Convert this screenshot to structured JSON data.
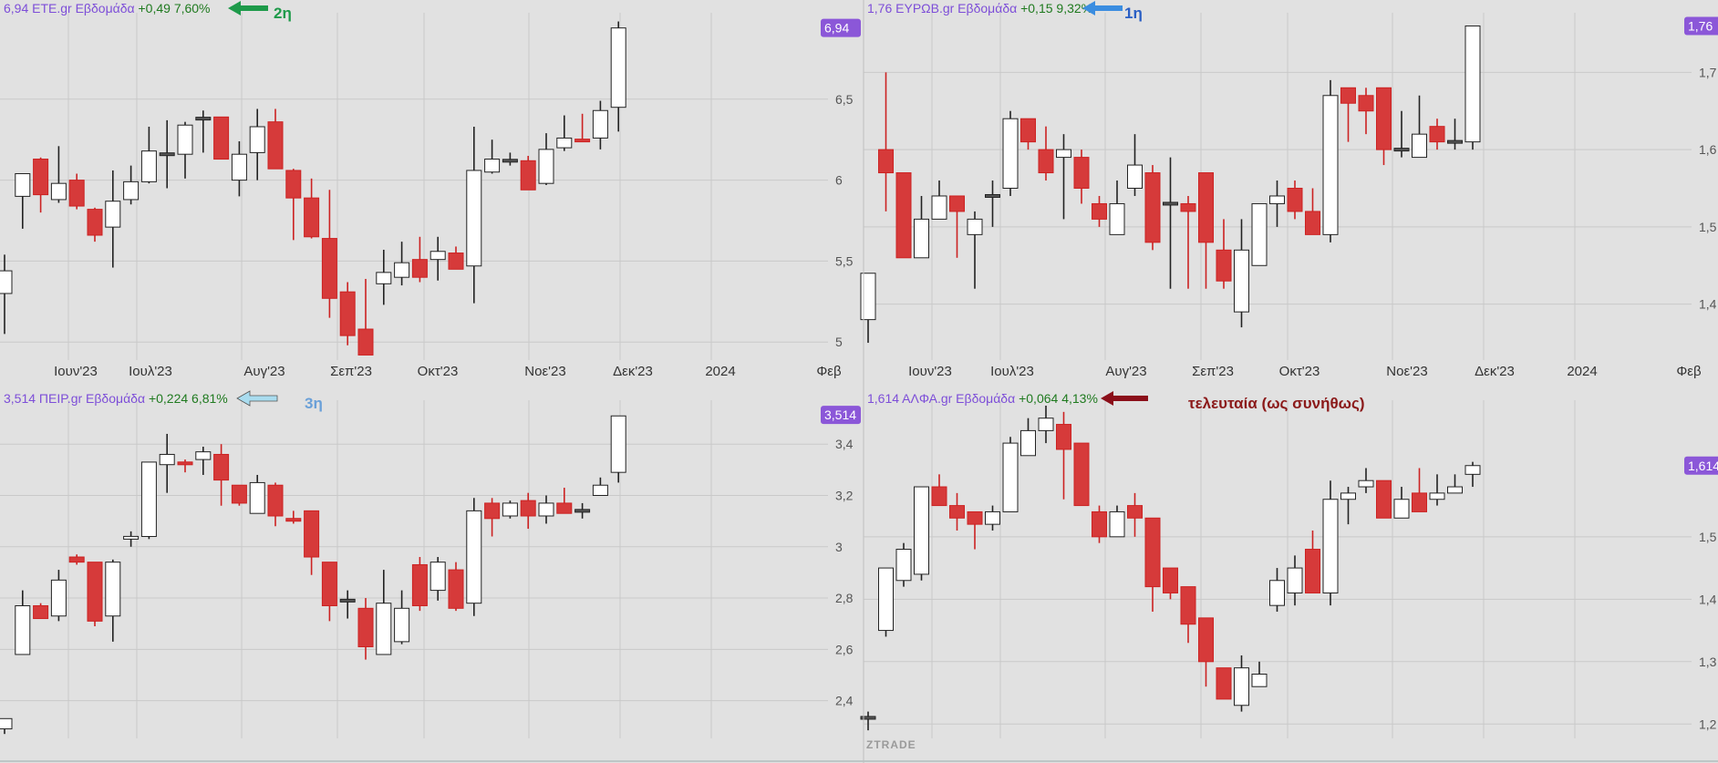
{
  "watermark": "ZTRADE",
  "colors": {
    "background": "#e1e1e1",
    "grid": "#c9c9c9",
    "up_fill": "#ffffff",
    "down_fill": "#d63a3a",
    "neutral_fill": "#555555",
    "header_name": "#7d4ed8",
    "header_change": "#1f7a1f",
    "price_badge": "#8b57d8"
  },
  "x_axis_labels": [
    "Ιουν'23",
    "Ιουλ'23",
    "Αυγ'23",
    "Σεπ'23",
    "Οκτ'23",
    "Νοε'23",
    "Δεκ'23",
    "2024",
    "Φεβ"
  ],
  "chart_data": [
    {
      "type": "candlestick",
      "symbol": "ETE.gr",
      "interval": "Εβδομάδα",
      "last": "6,94",
      "change": "+0,49",
      "change_pct": "7,60%",
      "annotation": {
        "text": "2η",
        "arrow": "green",
        "color": "#1e9a4a"
      },
      "ylim": [
        4.9,
        7.0
      ],
      "y_ticks": [
        "5",
        "5,5",
        "6",
        "6,5"
      ],
      "y_tick_values": [
        5,
        5.5,
        6,
        6.5
      ],
      "x_labels": [
        "Ιουν'23",
        "Ιουλ'23",
        "Αυγ'23",
        "Σεπ'23",
        "Οκτ'23",
        "Νοε'23",
        "Δεκ'23",
        "2024",
        "Φεβ"
      ],
      "grid": true,
      "candles": [
        [
          5.3,
          5.44,
          5.05,
          5.54
        ],
        [
          5.9,
          6.04,
          5.7,
          6.03
        ],
        [
          6.13,
          5.91,
          5.8,
          6.14
        ],
        [
          5.88,
          5.98,
          5.86,
          6.21
        ],
        [
          6.0,
          5.84,
          5.82,
          6.04
        ],
        [
          5.82,
          5.66,
          5.62,
          5.83
        ],
        [
          5.71,
          5.87,
          5.46,
          6.06
        ],
        [
          5.88,
          5.99,
          5.85,
          6.09
        ],
        [
          5.99,
          6.18,
          5.98,
          6.33
        ],
        [
          6.16,
          6.16,
          5.95,
          6.37
        ],
        [
          6.16,
          6.34,
          6.01,
          6.36
        ],
        [
          6.38,
          6.38,
          6.17,
          6.43
        ],
        [
          6.39,
          6.13,
          6.13,
          6.39
        ],
        [
          6.0,
          6.16,
          5.9,
          6.24
        ],
        [
          6.17,
          6.33,
          6.0,
          6.44
        ],
        [
          6.36,
          6.07,
          6.07,
          6.44
        ],
        [
          6.06,
          5.89,
          5.63,
          6.07
        ],
        [
          5.89,
          5.65,
          5.64,
          6.01
        ],
        [
          5.64,
          5.27,
          5.15,
          5.94
        ],
        [
          5.31,
          5.04,
          4.98,
          5.37
        ],
        [
          5.08,
          4.92,
          4.92,
          5.39
        ],
        [
          5.36,
          5.43,
          5.23,
          5.57
        ],
        [
          5.4,
          5.49,
          5.35,
          5.62
        ],
        [
          5.51,
          5.4,
          5.37,
          5.65
        ],
        [
          5.51,
          5.56,
          5.38,
          5.65
        ],
        [
          5.55,
          5.45,
          5.45,
          5.59
        ],
        [
          5.47,
          6.06,
          5.24,
          6.33
        ],
        [
          6.05,
          6.13,
          6.04,
          6.25
        ],
        [
          6.12,
          6.12,
          6.09,
          6.17
        ],
        [
          6.12,
          5.94,
          5.94,
          6.15
        ],
        [
          5.98,
          6.19,
          5.97,
          6.29
        ],
        [
          6.2,
          6.26,
          6.18,
          6.4
        ],
        [
          6.25,
          6.24,
          6.24,
          6.41
        ],
        [
          6.26,
          6.43,
          6.19,
          6.49
        ],
        [
          6.45,
          6.94,
          6.3,
          6.98
        ]
      ]
    },
    {
      "type": "candlestick",
      "symbol": "ΕΥΡΩΒ.gr",
      "interval": "Εβδομάδα",
      "last": "1,76",
      "change": "+0,15",
      "change_pct": "9,32%",
      "annotation": {
        "text": "1η",
        "arrow": "blue",
        "color": "#2a5fc4"
      },
      "ylim": [
        1.33,
        1.77
      ],
      "y_ticks": [
        "1,4",
        "1,5",
        "1,6",
        "1,7"
      ],
      "y_tick_values": [
        1.4,
        1.5,
        1.6,
        1.7
      ],
      "x_labels": [
        "Ιουν'23",
        "Ιουλ'23",
        "Αυγ'23",
        "Σεπ'23",
        "Οκτ'23",
        "Νοε'23",
        "Δεκ'23",
        "2024",
        "Φεβ"
      ],
      "grid": true,
      "candles": [
        [
          1.38,
          1.44,
          1.35,
          1.44
        ],
        [
          1.6,
          1.57,
          1.52,
          1.7
        ],
        [
          1.57,
          1.46,
          1.46,
          1.57
        ],
        [
          1.46,
          1.51,
          1.46,
          1.54
        ],
        [
          1.51,
          1.54,
          1.51,
          1.56
        ],
        [
          1.54,
          1.52,
          1.46,
          1.54
        ],
        [
          1.49,
          1.51,
          1.42,
          1.52
        ],
        [
          1.54,
          1.54,
          1.5,
          1.56
        ],
        [
          1.55,
          1.64,
          1.54,
          1.65
        ],
        [
          1.64,
          1.61,
          1.6,
          1.64
        ],
        [
          1.6,
          1.57,
          1.56,
          1.63
        ],
        [
          1.59,
          1.6,
          1.51,
          1.62
        ],
        [
          1.59,
          1.55,
          1.53,
          1.6
        ],
        [
          1.53,
          1.51,
          1.5,
          1.54
        ],
        [
          1.49,
          1.53,
          1.49,
          1.56
        ],
        [
          1.55,
          1.58,
          1.54,
          1.62
        ],
        [
          1.57,
          1.48,
          1.47,
          1.58
        ],
        [
          1.53,
          1.53,
          1.42,
          1.59
        ],
        [
          1.53,
          1.52,
          1.42,
          1.54
        ],
        [
          1.57,
          1.48,
          1.42,
          1.57
        ],
        [
          1.47,
          1.43,
          1.42,
          1.51
        ],
        [
          1.39,
          1.47,
          1.37,
          1.51
        ],
        [
          1.45,
          1.53,
          1.45,
          1.53
        ],
        [
          1.53,
          1.54,
          1.5,
          1.56
        ],
        [
          1.55,
          1.52,
          1.51,
          1.56
        ],
        [
          1.52,
          1.49,
          1.49,
          1.55
        ],
        [
          1.49,
          1.67,
          1.48,
          1.69
        ],
        [
          1.68,
          1.66,
          1.61,
          1.68
        ],
        [
          1.67,
          1.65,
          1.62,
          1.68
        ],
        [
          1.68,
          1.6,
          1.58,
          1.68
        ],
        [
          1.6,
          1.6,
          1.59,
          1.65
        ],
        [
          1.59,
          1.62,
          1.59,
          1.67
        ],
        [
          1.63,
          1.61,
          1.6,
          1.64
        ],
        [
          1.61,
          1.61,
          1.6,
          1.64
        ],
        [
          1.61,
          1.76,
          1.6,
          1.76
        ]
      ]
    },
    {
      "type": "candlestick",
      "symbol": "ΠΕΙΡ.gr",
      "interval": "Εβδομάδα",
      "last": "3,514",
      "change": "+0,224",
      "change_pct": "6,81%",
      "annotation": {
        "text": "3η",
        "arrow": "light-blue",
        "color": "#6aa0d8"
      },
      "ylim": [
        2.26,
        3.55
      ],
      "y_ticks": [
        "2,4",
        "2,6",
        "2,8",
        "3",
        "3,2",
        "3,4"
      ],
      "y_tick_values": [
        2.4,
        2.6,
        2.8,
        3.0,
        3.2,
        3.4
      ],
      "x_labels": [],
      "grid": true,
      "candles": [
        [
          2.29,
          2.33,
          2.27,
          2.33
        ],
        [
          2.58,
          2.77,
          2.58,
          2.83
        ],
        [
          2.77,
          2.72,
          2.72,
          2.78
        ],
        [
          2.73,
          2.87,
          2.71,
          2.91
        ],
        [
          2.96,
          2.94,
          2.93,
          2.97
        ],
        [
          2.94,
          2.71,
          2.69,
          2.94
        ],
        [
          2.73,
          2.94,
          2.63,
          2.95
        ],
        [
          3.03,
          3.04,
          3.0,
          3.06
        ],
        [
          3.04,
          3.33,
          3.03,
          3.33
        ],
        [
          3.32,
          3.36,
          3.21,
          3.44
        ],
        [
          3.33,
          3.32,
          3.29,
          3.34
        ],
        [
          3.34,
          3.37,
          3.28,
          3.39
        ],
        [
          3.36,
          3.26,
          3.16,
          3.4
        ],
        [
          3.24,
          3.17,
          3.16,
          3.23
        ],
        [
          3.13,
          3.25,
          3.13,
          3.28
        ],
        [
          3.24,
          3.12,
          3.08,
          3.25
        ],
        [
          3.11,
          3.1,
          3.09,
          3.14
        ],
        [
          3.14,
          2.96,
          2.89,
          3.14
        ],
        [
          2.94,
          2.77,
          2.71,
          2.94
        ],
        [
          2.79,
          2.79,
          2.72,
          2.83
        ],
        [
          2.76,
          2.61,
          2.56,
          2.8
        ],
        [
          2.58,
          2.78,
          2.58,
          2.91
        ],
        [
          2.63,
          2.76,
          2.62,
          2.83
        ],
        [
          2.93,
          2.77,
          2.75,
          2.96
        ],
        [
          2.83,
          2.94,
          2.79,
          2.96
        ],
        [
          2.91,
          2.76,
          2.75,
          2.94
        ],
        [
          2.78,
          3.14,
          2.73,
          3.19
        ],
        [
          3.17,
          3.11,
          3.04,
          3.19
        ],
        [
          3.12,
          3.17,
          3.11,
          3.18
        ],
        [
          3.18,
          3.12,
          3.07,
          3.21
        ],
        [
          3.12,
          3.17,
          3.09,
          3.2
        ],
        [
          3.17,
          3.13,
          3.13,
          3.23
        ],
        [
          3.14,
          3.14,
          3.11,
          3.17
        ],
        [
          3.2,
          3.24,
          3.2,
          3.27
        ],
        [
          3.29,
          3.51,
          3.25,
          3.51
        ]
      ]
    },
    {
      "type": "candlestick",
      "symbol": "ΑΛΦΑ.gr",
      "interval": "Εβδομάδα",
      "last": "1,614",
      "change": "+0,064",
      "change_pct": "4,13%",
      "annotation": {
        "text": "τελευταία (ως συνήθως)",
        "arrow": "dark-red",
        "color": "#8b1a1a"
      },
      "ylim": [
        1.18,
        1.71
      ],
      "y_ticks": [
        "1,2",
        "1,3",
        "1,4",
        "1,5"
      ],
      "y_tick_values": [
        1.2,
        1.3,
        1.4,
        1.5
      ],
      "x_labels": [],
      "grid": true,
      "candles": [
        [
          1.21,
          1.21,
          1.19,
          1.22
        ],
        [
          1.35,
          1.45,
          1.34,
          1.45
        ],
        [
          1.43,
          1.48,
          1.42,
          1.49
        ],
        [
          1.44,
          1.58,
          1.43,
          1.58
        ],
        [
          1.58,
          1.55,
          1.55,
          1.6
        ],
        [
          1.55,
          1.53,
          1.51,
          1.57
        ],
        [
          1.54,
          1.52,
          1.48,
          1.54
        ],
        [
          1.52,
          1.54,
          1.51,
          1.55
        ],
        [
          1.54,
          1.65,
          1.54,
          1.66
        ],
        [
          1.63,
          1.67,
          1.63,
          1.69
        ],
        [
          1.67,
          1.69,
          1.65,
          1.71
        ],
        [
          1.68,
          1.64,
          1.56,
          1.7
        ],
        [
          1.65,
          1.55,
          1.55,
          1.65
        ],
        [
          1.54,
          1.5,
          1.49,
          1.55
        ],
        [
          1.5,
          1.54,
          1.5,
          1.55
        ],
        [
          1.55,
          1.53,
          1.5,
          1.57
        ],
        [
          1.53,
          1.42,
          1.38,
          1.53
        ],
        [
          1.45,
          1.41,
          1.4,
          1.45
        ],
        [
          1.42,
          1.36,
          1.33,
          1.42
        ],
        [
          1.37,
          1.3,
          1.26,
          1.37
        ],
        [
          1.29,
          1.24,
          1.24,
          1.29
        ],
        [
          1.23,
          1.29,
          1.22,
          1.31
        ],
        [
          1.26,
          1.28,
          1.26,
          1.3
        ],
        [
          1.39,
          1.43,
          1.38,
          1.45
        ],
        [
          1.41,
          1.45,
          1.39,
          1.47
        ],
        [
          1.48,
          1.41,
          1.41,
          1.51
        ],
        [
          1.41,
          1.56,
          1.39,
          1.59
        ],
        [
          1.56,
          1.57,
          1.52,
          1.58
        ],
        [
          1.58,
          1.59,
          1.57,
          1.61
        ],
        [
          1.59,
          1.53,
          1.53,
          1.59
        ],
        [
          1.53,
          1.56,
          1.53,
          1.58
        ],
        [
          1.57,
          1.54,
          1.54,
          1.61
        ],
        [
          1.56,
          1.57,
          1.55,
          1.6
        ],
        [
          1.57,
          1.58,
          1.57,
          1.6
        ],
        [
          1.6,
          1.614,
          1.58,
          1.62
        ]
      ]
    }
  ]
}
